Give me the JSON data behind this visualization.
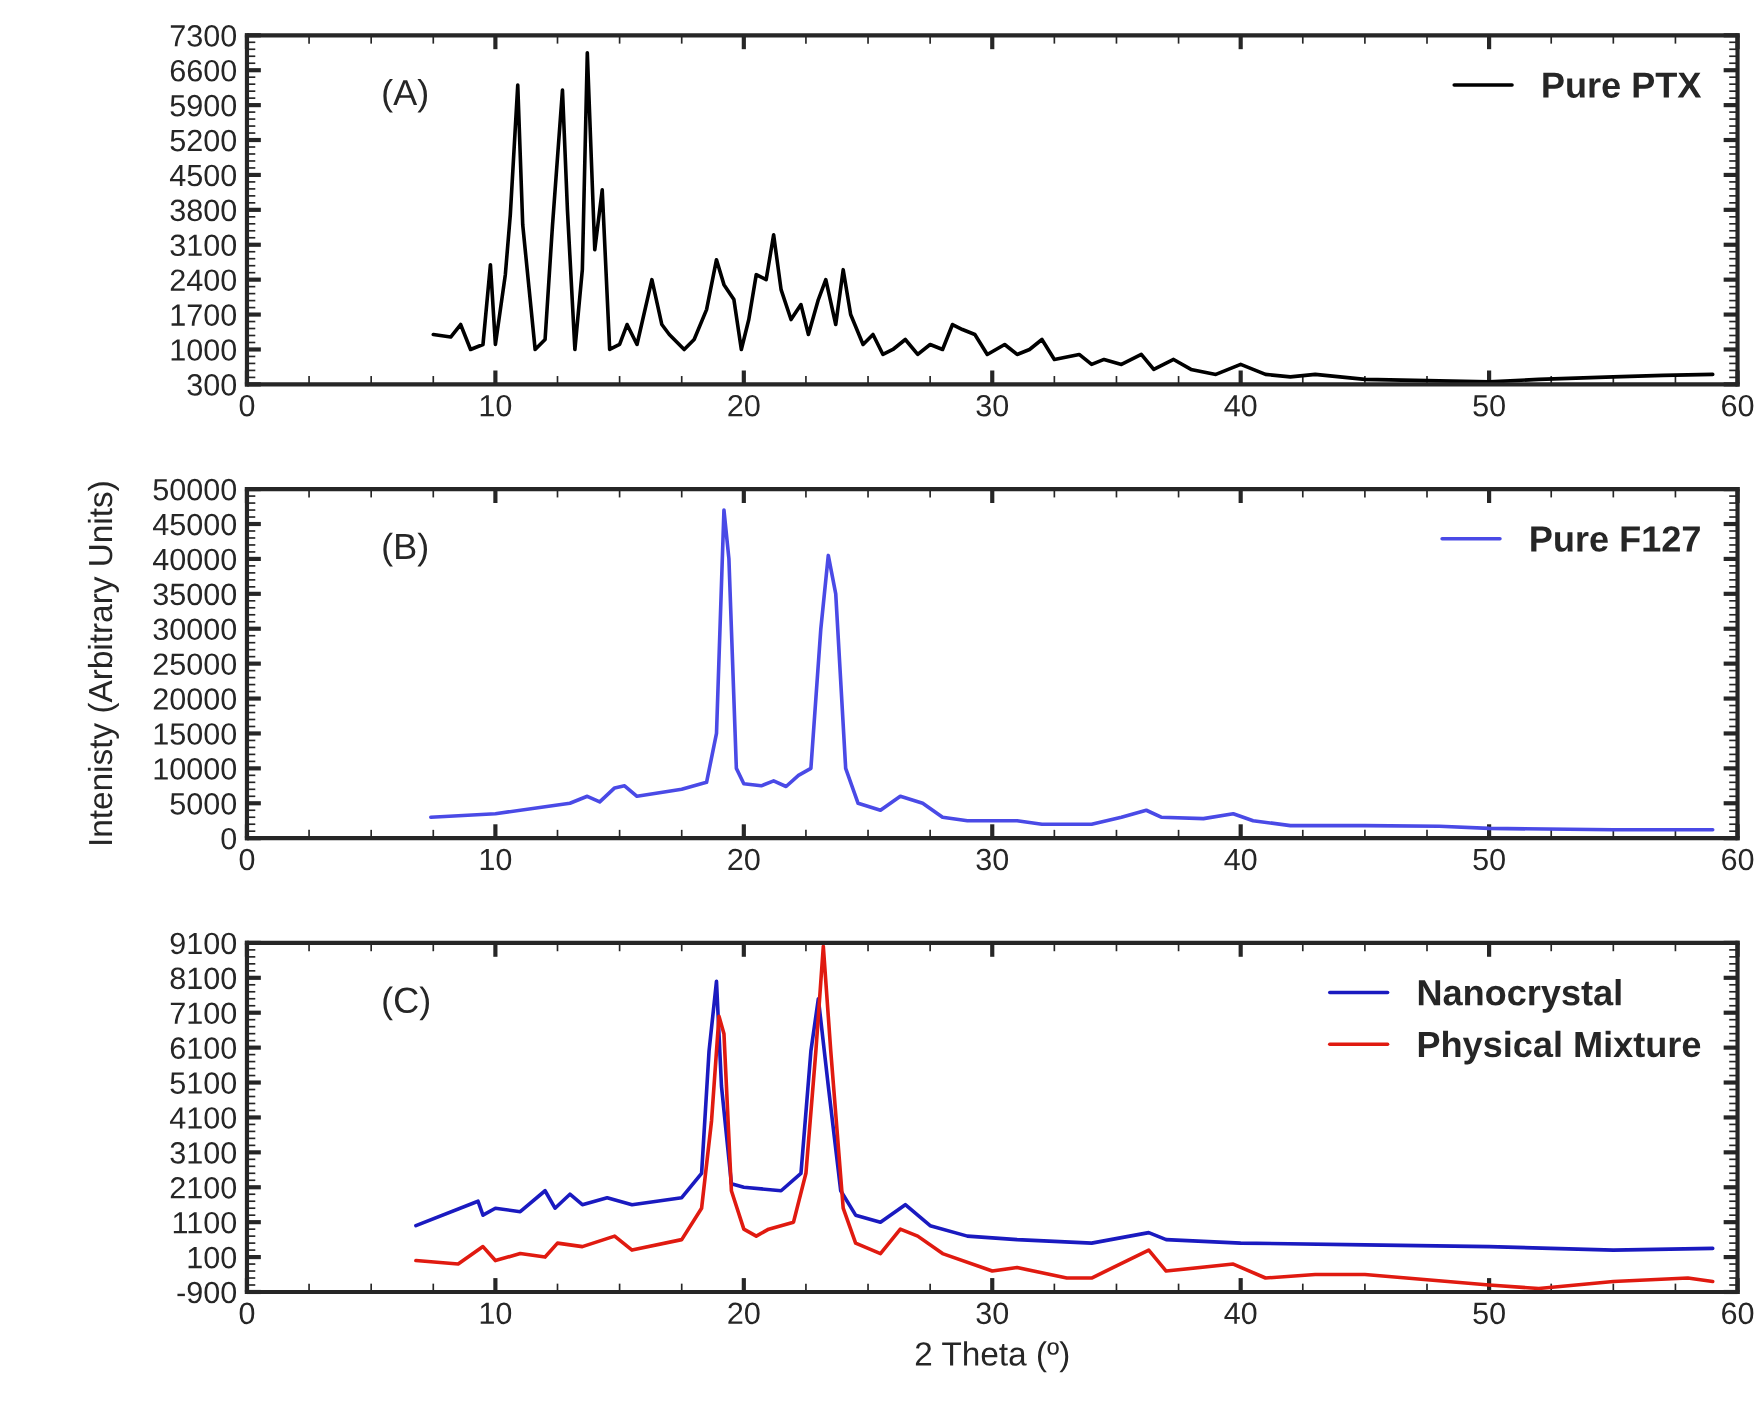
{
  "chart_data": [
    {
      "type": "line",
      "annotations": [
        "(A)"
      ],
      "legend": "top right",
      "grid": false,
      "marker": "none",
      "line_style": "solid",
      "xlim": [
        0,
        60
      ],
      "xticks": [
        0,
        10,
        20,
        30,
        40,
        50,
        60
      ],
      "ylim": [
        300,
        7300
      ],
      "yticks": [
        300,
        1000,
        1700,
        2400,
        3100,
        3800,
        4500,
        5200,
        5900,
        6600,
        7300
      ],
      "series": [
        {
          "name": "Pure PTX",
          "color": "#000000",
          "x": [
            7.5,
            8.2,
            8.6,
            9.0,
            9.5,
            9.8,
            10.0,
            10.4,
            10.6,
            10.9,
            11.1,
            11.6,
            12.0,
            12.3,
            12.7,
            12.9,
            13.2,
            13.5,
            13.7,
            14.0,
            14.3,
            14.6,
            15.0,
            15.3,
            15.7,
            16.3,
            16.7,
            17.0,
            17.6,
            18.0,
            18.5,
            18.9,
            19.2,
            19.6,
            19.9,
            20.2,
            20.5,
            20.9,
            21.2,
            21.5,
            21.9,
            22.3,
            22.6,
            23.0,
            23.3,
            23.7,
            24.0,
            24.3,
            24.8,
            25.2,
            25.6,
            26.0,
            26.5,
            27.0,
            27.5,
            28.0,
            28.4,
            28.8,
            29.3,
            29.8,
            30.5,
            31.0,
            31.5,
            32.0,
            32.5,
            33.5,
            34.0,
            34.5,
            35.2,
            36.0,
            36.5,
            37.3,
            38,
            39,
            40,
            41,
            42,
            43,
            45,
            47,
            50,
            52,
            55,
            57,
            59
          ],
          "values": [
            1300,
            1250,
            1500,
            1000,
            1100,
            2700,
            1100,
            2500,
            3700,
            6300,
            3500,
            1000,
            1200,
            3500,
            6200,
            3800,
            1000,
            2600,
            6950,
            3000,
            4200,
            1000,
            1100,
            1500,
            1100,
            2400,
            1500,
            1300,
            1000,
            1200,
            1800,
            2800,
            2300,
            2000,
            1000,
            1600,
            2500,
            2400,
            3300,
            2200,
            1600,
            1900,
            1300,
            2000,
            2400,
            1500,
            2600,
            1700,
            1100,
            1300,
            900,
            1000,
            1200,
            900,
            1100,
            1000,
            1500,
            1400,
            1300,
            900,
            1100,
            900,
            1000,
            1200,
            800,
            900,
            700,
            800,
            700,
            900,
            600,
            800,
            600,
            500,
            700,
            500,
            450,
            500,
            400,
            380,
            350,
            400,
            450,
            480,
            500
          ]
        }
      ]
    },
    {
      "type": "line",
      "annotations": [
        "(B)"
      ],
      "ylabel": "Intenisty (Arbitrary Units)",
      "legend": "top right",
      "grid": false,
      "marker": "none",
      "line_style": "solid",
      "xlim": [
        0,
        60
      ],
      "xticks": [
        0,
        10,
        20,
        30,
        40,
        50,
        60
      ],
      "ylim": [
        0,
        50000
      ],
      "yticks": [
        0,
        5000,
        10000,
        15000,
        20000,
        25000,
        30000,
        35000,
        40000,
        45000,
        50000
      ],
      "series": [
        {
          "name": "Pure F127",
          "color": "#4a4ae6",
          "x": [
            7.4,
            10,
            12,
            13,
            13.7,
            14.2,
            14.8,
            15.2,
            15.7,
            17.5,
            18.5,
            18.9,
            19.2,
            19.4,
            19.7,
            20.0,
            20.7,
            21.2,
            21.7,
            22.2,
            22.7,
            23.1,
            23.4,
            23.7,
            24.1,
            24.6,
            25.5,
            26.3,
            27.2,
            28,
            29,
            31,
            32,
            34,
            35.2,
            36.2,
            36.8,
            38.5,
            39.7,
            40.5,
            42,
            45,
            48,
            50,
            55,
            59
          ],
          "values": [
            3000,
            3500,
            4500,
            5000,
            6000,
            5200,
            7200,
            7500,
            6000,
            7000,
            8000,
            15000,
            47000,
            40000,
            10000,
            7800,
            7500,
            8200,
            7400,
            9000,
            10000,
            30000,
            40500,
            35000,
            10000,
            5000,
            4000,
            6000,
            5000,
            3000,
            2500,
            2500,
            2000,
            2000,
            3000,
            4000,
            3000,
            2800,
            3500,
            2500,
            1800,
            1800,
            1700,
            1400,
            1200,
            1200
          ]
        }
      ]
    },
    {
      "type": "line",
      "annotations": [
        "(C)"
      ],
      "xlabel": "2 Theta (º)",
      "legend": "top right",
      "grid": false,
      "marker": "none",
      "line_style": "solid",
      "xlim": [
        0,
        60
      ],
      "xticks": [
        0,
        10,
        20,
        30,
        40,
        50,
        60
      ],
      "ylim": [
        -900,
        9100
      ],
      "yticks": [
        -900,
        100,
        1100,
        2100,
        3100,
        4100,
        5100,
        6100,
        7100,
        8100,
        9100
      ],
      "series": [
        {
          "name": "Nanocrystal",
          "color": "#1a1ac0",
          "x": [
            6.8,
            9.3,
            9.5,
            10,
            11,
            12,
            12.4,
            13,
            13.5,
            14.5,
            15.5,
            17.5,
            18.3,
            18.6,
            18.9,
            19.1,
            19.5,
            20,
            21.5,
            22.3,
            22.7,
            23.0,
            23.4,
            23.9,
            24.5,
            25.5,
            26.5,
            27.5,
            29,
            31,
            34,
            36.3,
            37,
            40,
            45,
            50,
            55,
            59
          ],
          "values": [
            1000,
            1700,
            1300,
            1500,
            1400,
            2000,
            1500,
            1900,
            1600,
            1800,
            1600,
            1800,
            2500,
            6000,
            8000,
            5000,
            2200,
            2100,
            2000,
            2500,
            6000,
            7500,
            5000,
            2000,
            1300,
            1100,
            1600,
            1000,
            700,
            600,
            500,
            800,
            600,
            500,
            450,
            400,
            300,
            350
          ]
        },
        {
          "name": "Physical Mixture",
          "color": "#e01a10",
          "x": [
            6.8,
            8.5,
            9.5,
            10,
            11,
            12,
            12.5,
            13.5,
            14.8,
            15.5,
            17.5,
            18.3,
            18.7,
            19.0,
            19.2,
            19.5,
            20,
            20.5,
            21,
            22,
            22.5,
            22.9,
            23.2,
            23.5,
            24,
            24.5,
            25.5,
            26.3,
            27,
            28,
            30,
            31,
            33,
            34,
            36.3,
            37,
            39.7,
            41,
            43,
            45,
            50,
            52,
            55,
            58,
            59
          ],
          "values": [
            0,
            -100,
            400,
            0,
            200,
            100,
            500,
            400,
            700,
            300,
            600,
            1500,
            4000,
            7000,
            6500,
            2000,
            900,
            700,
            900,
            1100,
            2500,
            6000,
            9000,
            6000,
            1500,
            500,
            200,
            900,
            700,
            200,
            -300,
            -200,
            -500,
            -500,
            300,
            -300,
            -100,
            -500,
            -400,
            -400,
            -700,
            -800,
            -600,
            -500,
            -600
          ]
        }
      ]
    }
  ]
}
